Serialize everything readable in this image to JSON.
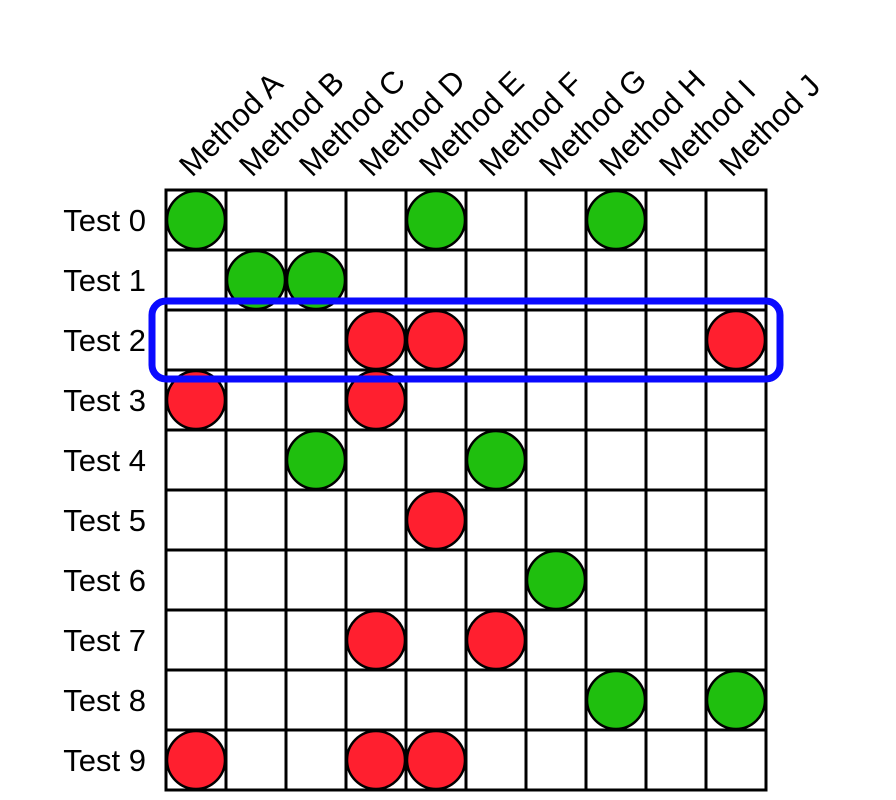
{
  "methods": [
    "Method A",
    "Method B",
    "Method C",
    "Method D",
    "Method E",
    "Method F",
    "Method G",
    "Method H",
    "Method I",
    "Method J"
  ],
  "tests": [
    "Test 0",
    "Test 1",
    "Test 2",
    "Test 3",
    "Test 4",
    "Test 5",
    "Test 6",
    "Test 7",
    "Test 8",
    "Test 9"
  ],
  "colors": {
    "pass": "#1fbf0e",
    "fail": "#ff1f2f",
    "highlight": "#0a0aff",
    "grid": "#000000"
  },
  "highlighted_row": 2,
  "cells": [
    {
      "row": 0,
      "col": 0,
      "status": "pass"
    },
    {
      "row": 0,
      "col": 4,
      "status": "pass"
    },
    {
      "row": 0,
      "col": 7,
      "status": "pass"
    },
    {
      "row": 1,
      "col": 1,
      "status": "pass"
    },
    {
      "row": 1,
      "col": 2,
      "status": "pass"
    },
    {
      "row": 2,
      "col": 3,
      "status": "fail"
    },
    {
      "row": 2,
      "col": 4,
      "status": "fail"
    },
    {
      "row": 2,
      "col": 9,
      "status": "fail"
    },
    {
      "row": 3,
      "col": 0,
      "status": "fail"
    },
    {
      "row": 3,
      "col": 3,
      "status": "fail"
    },
    {
      "row": 4,
      "col": 2,
      "status": "pass"
    },
    {
      "row": 4,
      "col": 5,
      "status": "pass"
    },
    {
      "row": 5,
      "col": 4,
      "status": "fail"
    },
    {
      "row": 6,
      "col": 6,
      "status": "pass"
    },
    {
      "row": 7,
      "col": 3,
      "status": "fail"
    },
    {
      "row": 7,
      "col": 5,
      "status": "fail"
    },
    {
      "row": 8,
      "col": 7,
      "status": "pass"
    },
    {
      "row": 8,
      "col": 9,
      "status": "pass"
    },
    {
      "row": 9,
      "col": 0,
      "status": "fail"
    },
    {
      "row": 9,
      "col": 3,
      "status": "fail"
    },
    {
      "row": 9,
      "col": 4,
      "status": "fail"
    }
  ]
}
